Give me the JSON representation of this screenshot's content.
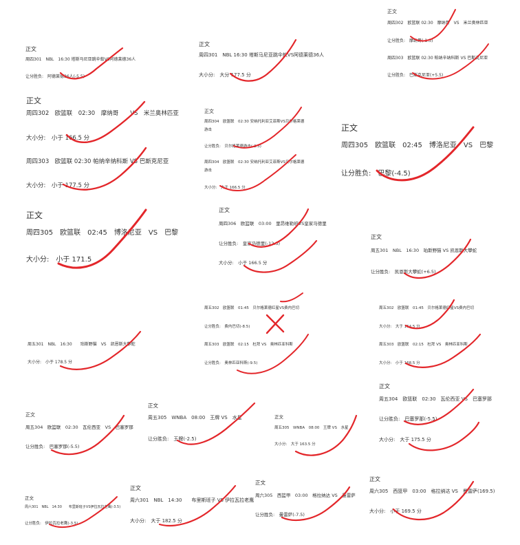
{
  "slips": [
    {
      "header": "正文",
      "lines": [
        "周四301　NBL　16:30 塔斯马尼亚跳伞蚁VS阿德莱德36人",
        "让分胜负:　阿德莱德36人(-5.5)"
      ]
    },
    {
      "header": "正文",
      "lines": [
        "周四301　NBL 16:30 塔斯马尼亚跳伞蚁VS阿德莱德36人",
        "大小分:　大分 177.5 分"
      ]
    },
    {
      "header": "正文",
      "lines": [
        "周四302　欧篮联 02:30　摩纳哥　VS　米兰奥林匹亚",
        "让分胜负:　摩纳哥(-1.5)",
        "周四303　欧篮联 02:30 帕纳辛纳科斯 VS 巴斯克尼亚",
        "让分胜负:　巴斯克尼亚(+5.5)"
      ]
    },
    {
      "header": "正文",
      "lines": [
        "周四302　欧篮联　02:30　摩纳哥　　VS　米兰奥林匹亚",
        "大小分:　小于 166.5 分",
        "周四303　欧篮联 02:30 帕纳辛纳科斯 VS 巴斯克尼亚",
        "大小分:　小于 177.5 分"
      ]
    },
    {
      "header": "正文",
      "lines": [
        "周四304　欧篮联　02:30 安纳托利亚艾菲斯VS贝尔格莱德",
        "游击",
        "让分胜负:　贝尔格莱德游击(-3.5)",
        "周四304　欧篮联　02:30 安纳托利亚艾菲斯VS贝尔格莱德",
        "游击",
        "大小分:　大于 166.5 分"
      ]
    },
    {
      "header": "正文",
      "lines": [
        "周四305　欧篮联　02:45　博洛尼亚　VS　巴黎",
        "让分胜负:　巴黎(-4.5)"
      ]
    },
    {
      "header": "正文",
      "lines": [
        "周四305　欧篮联　02:45　博洛尼亚　VS　巴黎",
        "大小分:　小于 171.5"
      ]
    },
    {
      "header": "正文",
      "lines": [
        "周四306　欧篮联　03:00　里昂维勒班VS皇家马德里",
        "让分胜负:　皇家马德里(-12.5)",
        "大小分:　小于 166.5 分"
      ]
    },
    {
      "header": "正文",
      "lines": [
        "周五301　NBL　16:30　珀斯野猫 VS 凯恩斯大攀蛇",
        "让分胜负:　凯恩斯大攀蛇(+6.5)"
      ]
    },
    {
      "header": "",
      "lines": [
        "周五302　欧篮联　01:45　贝尔格莱德红星VS费内巴切",
        "让分胜负:　费内巴切(-8.5)",
        "周五303　欧篮联　02:15　杜拜 VS　奥林匹亚科斯",
        "让分胜负:　奥林匹亚科斯(-9.5)"
      ]
    },
    {
      "header": "",
      "lines": [
        "周五302　欧篮联　01:45　贝尔格莱德红星VS费内巴切",
        "大小分:　大于 164.5 分",
        "周五303　欧篮联　02:15　杜拜 VS　奥林匹亚科斯",
        "大小分:　小于 168.5 分"
      ]
    },
    {
      "header": "",
      "lines": [
        "周五301　NBL　16:30　　珀斯野猫　VS　凯恩斯大攀蛇",
        "大小分:　小于 178.5 分"
      ]
    },
    {
      "header": "正文",
      "lines": [
        "周五304　欧篮联　02:30　瓦伦西亚 VS　巴塞罗那",
        "让分胜负:　巴塞罗那(-5.5)",
        "大小分:　大于 175.5 分"
      ]
    },
    {
      "header": "正文",
      "lines": [
        "周五304　欧篮联　02:30　瓦伦西亚　VS　巴塞罗那",
        "让分胜负:　巴塞罗那(-5.5)"
      ]
    },
    {
      "header": "正文",
      "lines": [
        "周五305　WNBA　08:00　王牌 VS　水星",
        "让分胜负:　王牌(-2.5)"
      ]
    },
    {
      "header": "正文",
      "lines": [
        "周五305　WNBA　08:00　王牌 VS　水星",
        "大小分:　大于 163.5 分"
      ]
    },
    {
      "header": "正文",
      "lines": [
        "周六301　NBL　14:30　　布里斯班子VS伊拉瓦拉老鹰(-3.5)",
        "让分胜负:　伊拉瓦拉老鹰(-3.5)"
      ]
    },
    {
      "header": "正文",
      "lines": [
        "周六301　NBL　14:30　　布里斯班子 VS 伊拉瓦拉老鹰",
        "大小分:　大于 182.5 分"
      ]
    },
    {
      "header": "正文",
      "lines": [
        "周六305　西篮甲　03:00　格拉纳达 VS　曼雷萨",
        "让分胜负:　曼雷萨(-7.5)"
      ]
    },
    {
      "header": "正文",
      "lines": [
        "周六305　西篮甲　03:00　格拉纳达 VS　曼雷萨(169.5)",
        "大小分:　小于 169.5 分"
      ]
    }
  ],
  "ink_color": "#e3262a"
}
